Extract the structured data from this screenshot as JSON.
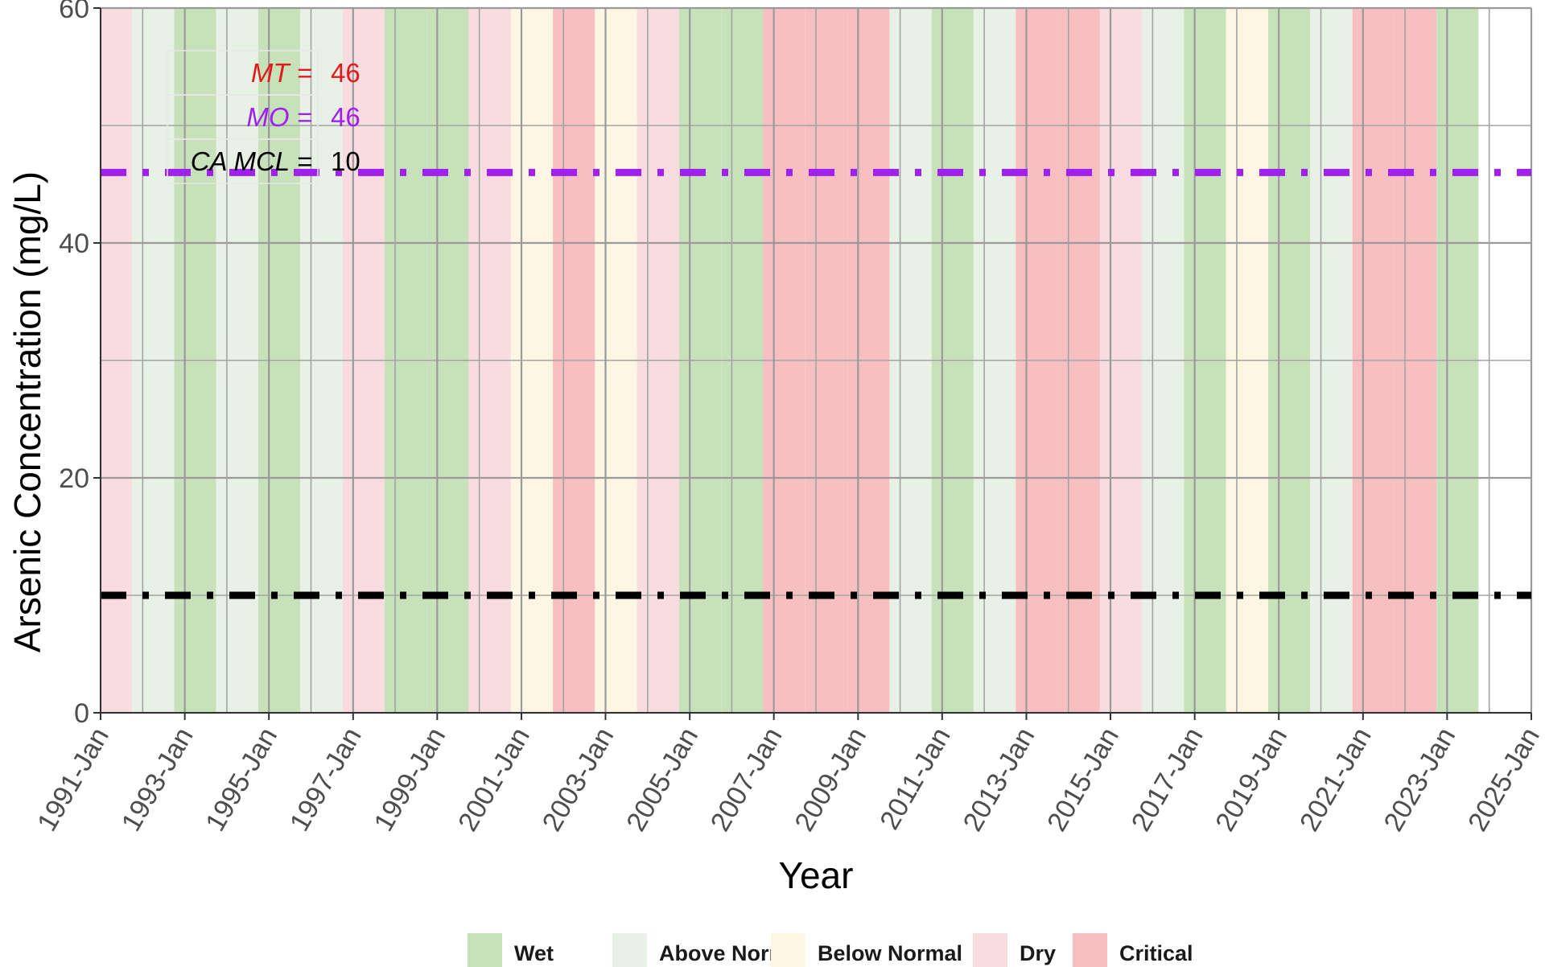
{
  "chart_data": {
    "type": "line",
    "xlabel": "Year",
    "ylabel": "Arsenic Concentration (mg/L)",
    "xlim": [
      "1991-01-01",
      "2025-01-01"
    ],
    "ylim": [
      0,
      60
    ],
    "y_ticks": [
      0,
      20,
      40,
      60
    ],
    "x_ticks": [
      "1991-Jan",
      "1993-Jan",
      "1995-Jan",
      "1997-Jan",
      "1999-Jan",
      "2001-Jan",
      "2003-Jan",
      "2005-Jan",
      "2007-Jan",
      "2009-Jan",
      "2011-Jan",
      "2013-Jan",
      "2015-Jan",
      "2017-Jan",
      "2019-Jan",
      "2021-Jan",
      "2023-Jan",
      "2025-Jan"
    ],
    "grid": true,
    "legend_position": "bottom",
    "thresholds": [
      {
        "name": "MT",
        "label": "MT =",
        "value": 46,
        "value_text": "46",
        "color": "#e31a1c",
        "style": "none"
      },
      {
        "name": "MO",
        "label": "MO =",
        "value": 46,
        "value_text": "46",
        "color": "#a020f0",
        "style": "dashdot"
      },
      {
        "name": "CA MCL",
        "label": "CA MCL =",
        "value": 10,
        "value_text": "10",
        "color": "#000000",
        "style": "dashdot"
      }
    ],
    "water_year_types": [
      {
        "name": "Wet",
        "label": "Wet",
        "color": "#c7e2bb"
      },
      {
        "name": "Above Normal",
        "label": "Above Normal",
        "color": "#e8f1e5"
      },
      {
        "name": "Below Normal",
        "label": "Below Normal",
        "color": "#fdf6e3"
      },
      {
        "name": "Dry",
        "label": "Dry",
        "color": "#f9dcdf"
      },
      {
        "name": "Critical",
        "label": "Critical",
        "color": "#f7bfc0"
      }
    ],
    "year_bands": [
      {
        "start": "1990-10-01",
        "end": "1991-10-01",
        "type": "Dry"
      },
      {
        "start": "1991-10-01",
        "end": "1992-10-01",
        "type": "Above Normal"
      },
      {
        "start": "1992-10-01",
        "end": "1993-10-01",
        "type": "Wet"
      },
      {
        "start": "1993-10-01",
        "end": "1994-10-01",
        "type": "Above Normal"
      },
      {
        "start": "1994-10-01",
        "end": "1995-10-01",
        "type": "Wet"
      },
      {
        "start": "1995-10-01",
        "end": "1996-10-01",
        "type": "Above Normal"
      },
      {
        "start": "1996-10-01",
        "end": "1997-10-01",
        "type": "Dry"
      },
      {
        "start": "1997-10-01",
        "end": "1998-10-01",
        "type": "Wet"
      },
      {
        "start": "1998-10-01",
        "end": "1999-10-01",
        "type": "Wet"
      },
      {
        "start": "1999-10-01",
        "end": "2000-10-01",
        "type": "Dry"
      },
      {
        "start": "2000-10-01",
        "end": "2001-10-01",
        "type": "Below Normal"
      },
      {
        "start": "2001-10-01",
        "end": "2002-10-01",
        "type": "Critical"
      },
      {
        "start": "2002-10-01",
        "end": "2003-10-01",
        "type": "Below Normal"
      },
      {
        "start": "2003-10-01",
        "end": "2004-10-01",
        "type": "Dry"
      },
      {
        "start": "2004-10-01",
        "end": "2005-10-01",
        "type": "Wet"
      },
      {
        "start": "2005-10-01",
        "end": "2006-10-01",
        "type": "Wet"
      },
      {
        "start": "2006-10-01",
        "end": "2007-10-01",
        "type": "Critical"
      },
      {
        "start": "2007-10-01",
        "end": "2008-10-01",
        "type": "Critical"
      },
      {
        "start": "2008-10-01",
        "end": "2009-10-01",
        "type": "Critical"
      },
      {
        "start": "2009-10-01",
        "end": "2010-10-01",
        "type": "Above Normal"
      },
      {
        "start": "2010-10-01",
        "end": "2011-10-01",
        "type": "Wet"
      },
      {
        "start": "2011-10-01",
        "end": "2012-10-01",
        "type": "Above Normal"
      },
      {
        "start": "2012-10-01",
        "end": "2013-10-01",
        "type": "Critical"
      },
      {
        "start": "2013-10-01",
        "end": "2014-10-01",
        "type": "Critical"
      },
      {
        "start": "2014-10-01",
        "end": "2015-10-01",
        "type": "Dry"
      },
      {
        "start": "2015-10-01",
        "end": "2016-10-01",
        "type": "Above Normal"
      },
      {
        "start": "2016-10-01",
        "end": "2017-10-01",
        "type": "Wet"
      },
      {
        "start": "2017-10-01",
        "end": "2018-10-01",
        "type": "Below Normal"
      },
      {
        "start": "2018-10-01",
        "end": "2019-10-01",
        "type": "Wet"
      },
      {
        "start": "2019-10-01",
        "end": "2020-10-01",
        "type": "Above Normal"
      },
      {
        "start": "2020-10-01",
        "end": "2021-10-01",
        "type": "Critical"
      },
      {
        "start": "2021-10-01",
        "end": "2022-10-01",
        "type": "Critical"
      },
      {
        "start": "2022-10-01",
        "end": "2023-10-01",
        "type": "Wet"
      }
    ]
  }
}
